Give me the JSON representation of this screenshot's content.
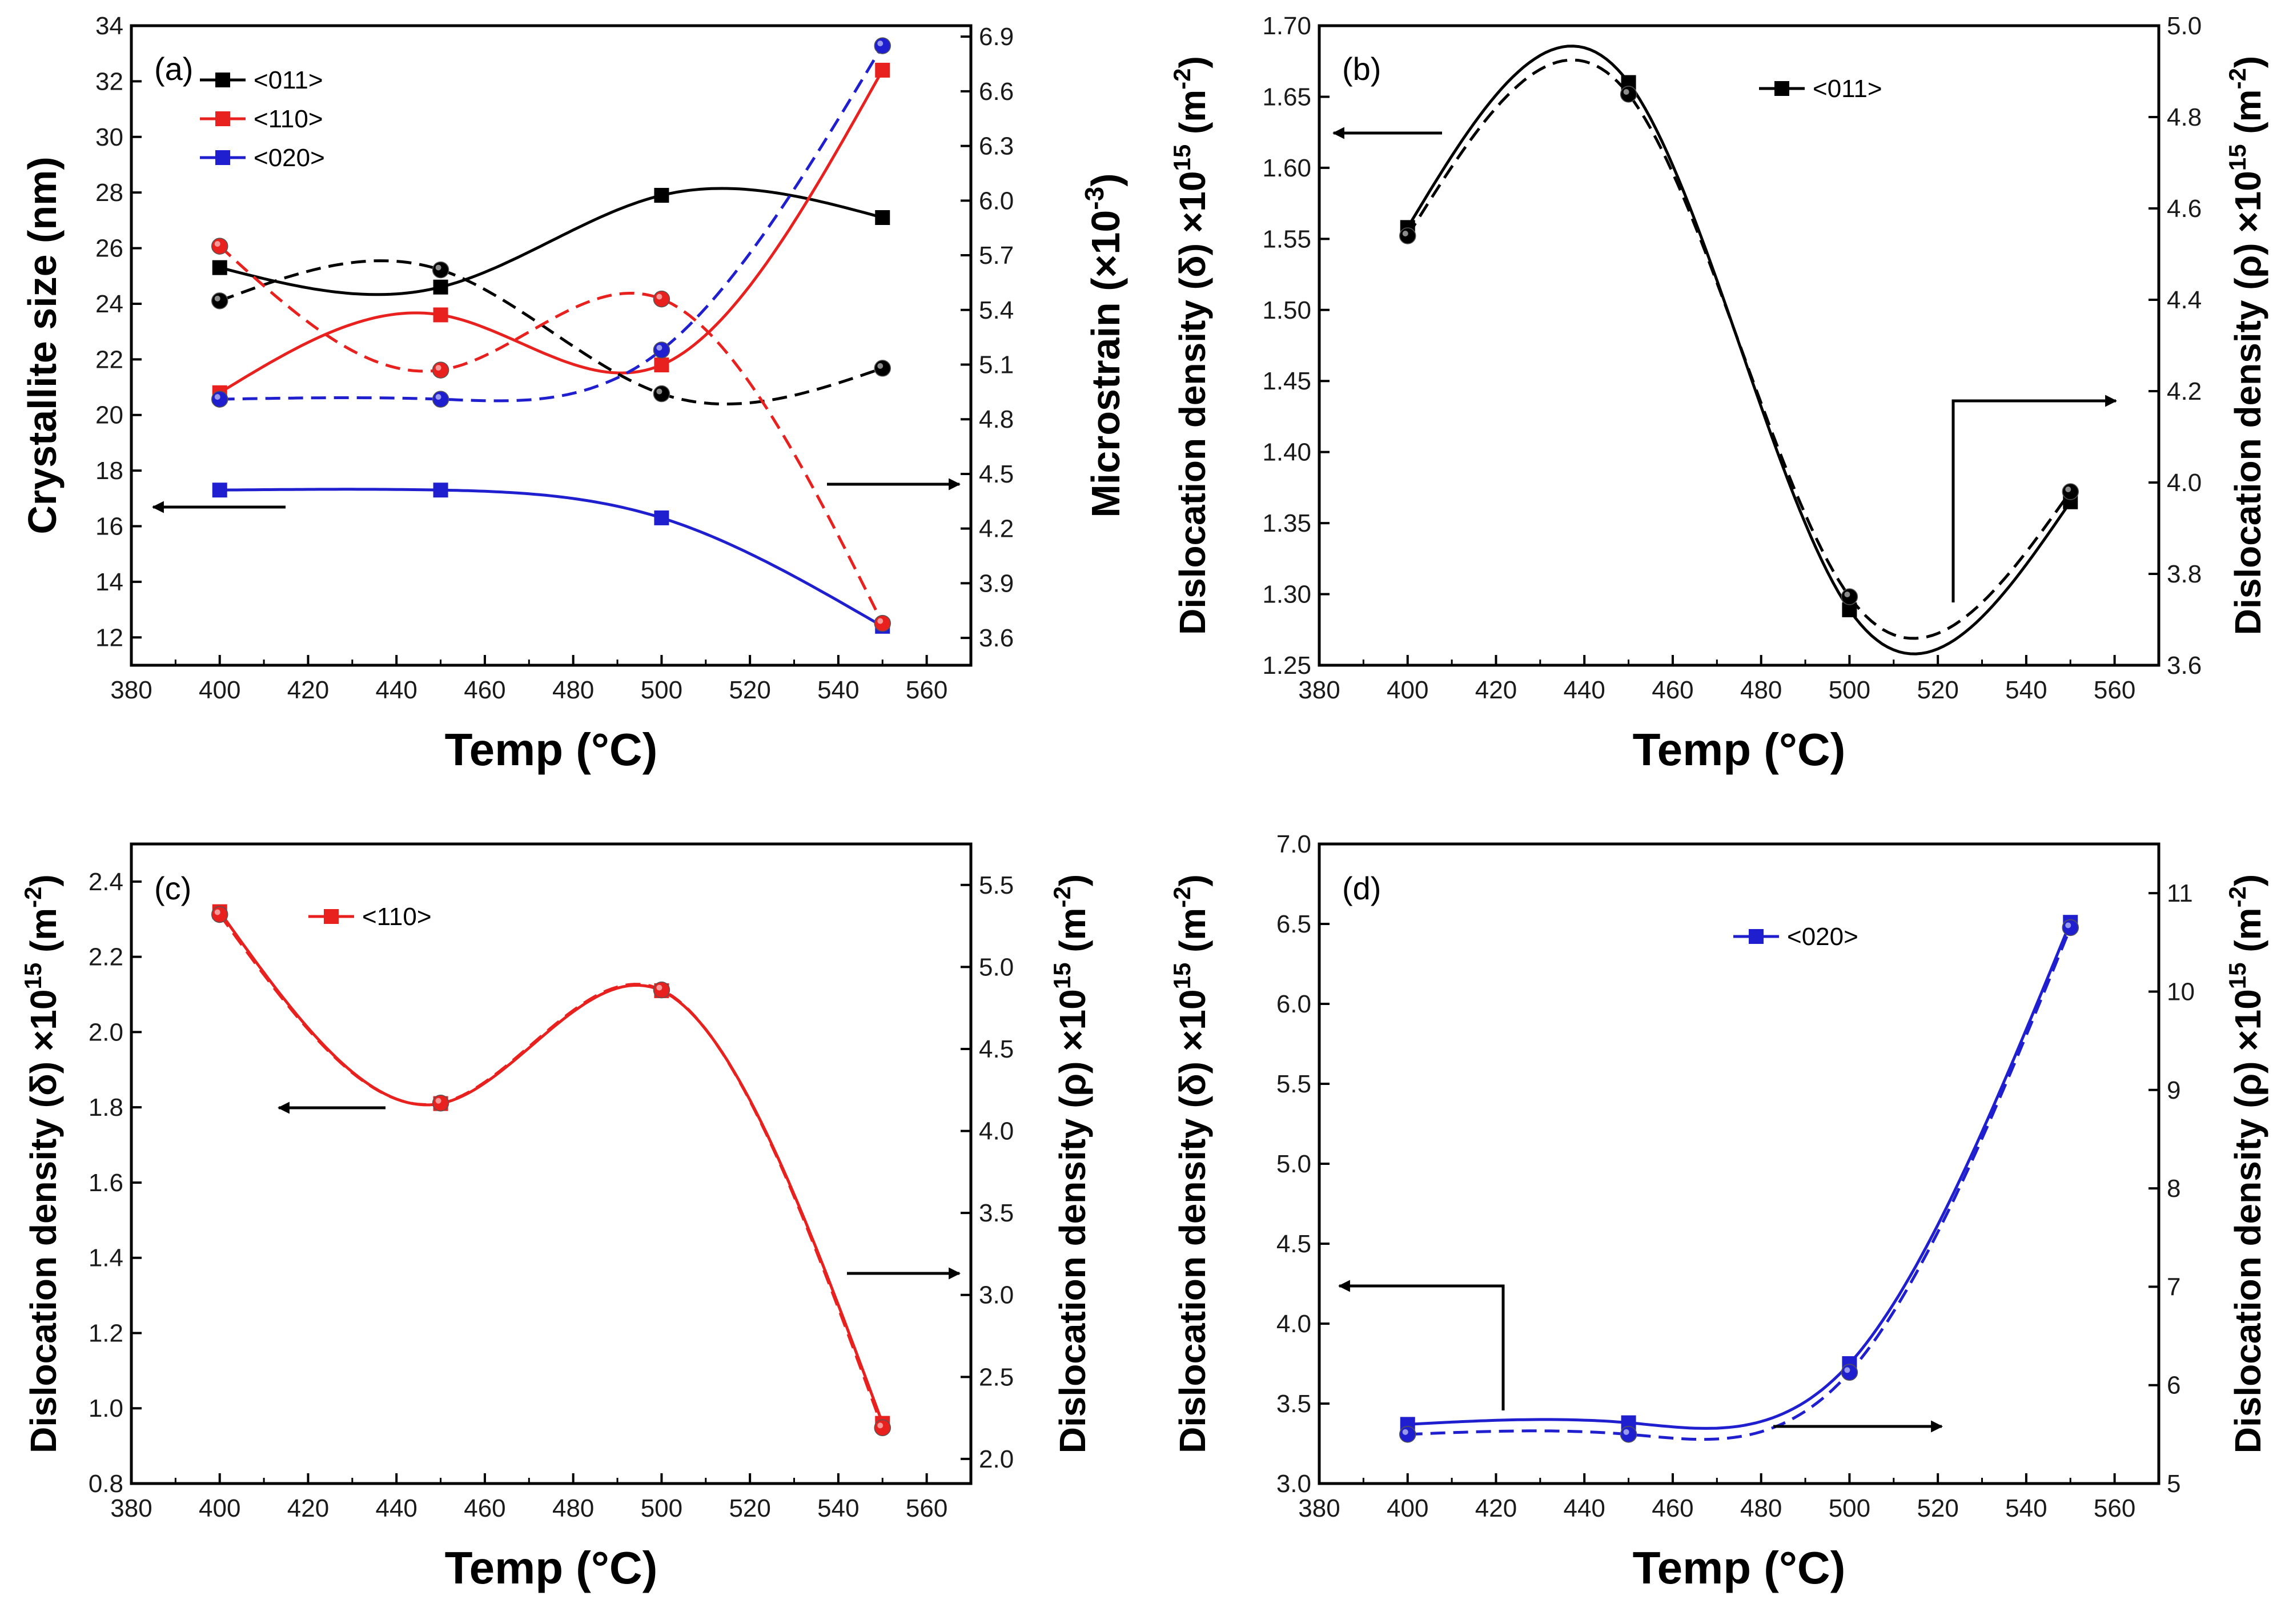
{
  "chart_data": [
    {
      "type": "line",
      "panel": "(a)",
      "xlabel": "Temp (°C)",
      "ylabel": "Crystallite size (nm)",
      "ylabel_right": "Microstrain (×10",
      "ylabel_right_exp": "-3",
      "ylabel_right_close": ")",
      "xlim": [
        380,
        570
      ],
      "ylim": [
        11,
        34
      ],
      "ylim_right": [
        3.45,
        6.96
      ],
      "xticks": [
        380,
        400,
        420,
        440,
        460,
        480,
        500,
        520,
        540,
        560
      ],
      "yticks": [
        12,
        14,
        16,
        18,
        20,
        22,
        24,
        26,
        28,
        30,
        32,
        34
      ],
      "yticks_right": [
        "3.6",
        "3.9",
        "4.2",
        "4.5",
        "4.8",
        "5.1",
        "5.4",
        "5.7",
        "6.0",
        "6.3",
        "6.6",
        "6.9"
      ],
      "x": [
        400,
        450,
        500,
        550
      ],
      "legend": [
        {
          "label": "<011>",
          "color": "#000000"
        },
        {
          "label": "<110>",
          "color": "#e8211f"
        },
        {
          "label": "<020>",
          "color": "#1f1fd0"
        }
      ],
      "series": [
        {
          "name": "<011>",
          "axis": "left",
          "marker": "square",
          "dashed": false,
          "color": "#000000",
          "values": [
            25.3,
            24.6,
            27.9,
            27.1
          ]
        },
        {
          "name": "<110>",
          "axis": "left",
          "marker": "square",
          "dashed": false,
          "color": "#e8211f",
          "values": [
            20.8,
            23.6,
            21.8,
            32.4
          ]
        },
        {
          "name": "<020>",
          "axis": "left",
          "marker": "square",
          "dashed": false,
          "color": "#1f1fd0",
          "values": [
            17.3,
            17.3,
            16.3,
            12.4
          ]
        },
        {
          "name": "<011>",
          "axis": "right",
          "marker": "circle",
          "dashed": true,
          "color": "#000000",
          "values": [
            5.45,
            5.62,
            4.94,
            5.08
          ]
        },
        {
          "name": "<110>",
          "axis": "right",
          "marker": "circle",
          "dashed": true,
          "color": "#e8211f",
          "values": [
            5.75,
            5.07,
            5.46,
            3.68
          ]
        },
        {
          "name": "<020>",
          "axis": "right",
          "marker": "circle",
          "dashed": true,
          "color": "#1f1fd0",
          "values": [
            4.91,
            4.91,
            5.18,
            6.85
          ]
        }
      ]
    },
    {
      "type": "line",
      "panel": "(b)",
      "xlabel": "Temp (°C)",
      "ylabel": "Dislocation density (δ) ×10",
      "ylabel_exp": "15",
      "ylabel_unit": " (m",
      "ylabel_unit_exp": "-2",
      "ylabel_close": ")",
      "ylabel_right": "Dislocation density (ρ) ×10",
      "ylabel_right_exp": "15",
      "ylabel_right_unit": " (m",
      "ylabel_right_unit_exp": "-2",
      "ylabel_right_close": ")",
      "xlim": [
        380,
        570
      ],
      "ylim": [
        1.25,
        1.7
      ],
      "ylim_right": [
        3.6,
        5.0
      ],
      "xticks": [
        380,
        400,
        420,
        440,
        460,
        480,
        500,
        520,
        540,
        560
      ],
      "yticks": [
        "1.25",
        "1.30",
        "1.35",
        "1.40",
        "1.45",
        "1.50",
        "1.55",
        "1.60",
        "1.65",
        "1.70"
      ],
      "yticks_right": [
        "3.6",
        "3.8",
        "4.0",
        "4.2",
        "4.4",
        "4.6",
        "4.8",
        "5.0"
      ],
      "x": [
        400,
        450,
        500,
        550
      ],
      "legend": [
        {
          "label": "<011>",
          "color": "#000000"
        }
      ],
      "series": [
        {
          "name": "δ",
          "axis": "left",
          "marker": "square",
          "dashed": false,
          "color": "#000000",
          "values": [
            1.558,
            1.66,
            1.289,
            1.365
          ]
        },
        {
          "name": "ρ",
          "axis": "right",
          "marker": "circle",
          "dashed": true,
          "color": "#000000",
          "values": [
            4.54,
            4.85,
            3.75,
            3.98
          ]
        }
      ]
    },
    {
      "type": "line",
      "panel": "(c)",
      "xlabel": "Temp (°C)",
      "ylabel": "Dislocation density (δ) ×10",
      "ylabel_exp": "15",
      "ylabel_unit": " (m",
      "ylabel_unit_exp": "-2",
      "ylabel_close": ")",
      "ylabel_right": "Dislocation density (ρ) ×10",
      "ylabel_right_exp": "15",
      "ylabel_right_unit": " (m",
      "ylabel_right_unit_exp": "-2",
      "ylabel_right_close": ")",
      "xlim": [
        380,
        570
      ],
      "ylim": [
        0.8,
        2.5
      ],
      "ylim_right": [
        1.85,
        5.75
      ],
      "xticks": [
        380,
        400,
        420,
        440,
        460,
        480,
        500,
        520,
        540,
        560
      ],
      "yticks": [
        "0.8",
        "1.0",
        "1.2",
        "1.4",
        "1.6",
        "1.8",
        "2.0",
        "2.2",
        "2.4"
      ],
      "yticks_right": [
        "2.0",
        "2.5",
        "3.0",
        "3.5",
        "4.0",
        "4.5",
        "5.0",
        "5.5"
      ],
      "x": [
        400,
        450,
        500,
        550
      ],
      "legend": [
        {
          "label": "<110>",
          "color": "#e8211f"
        }
      ],
      "series": [
        {
          "name": "δ",
          "axis": "left",
          "marker": "square",
          "dashed": false,
          "color": "#e8211f",
          "values": [
            2.32,
            1.81,
            2.11,
            0.96
          ]
        },
        {
          "name": "ρ",
          "axis": "right",
          "marker": "circle",
          "dashed": true,
          "color": "#e8211f",
          "values": [
            5.32,
            4.17,
            4.86,
            2.19
          ]
        }
      ]
    },
    {
      "type": "line",
      "panel": "(d)",
      "xlabel": "Temp (°C)",
      "ylabel": "Dislocation density (δ) ×10",
      "ylabel_exp": "15",
      "ylabel_unit": " (m",
      "ylabel_unit_exp": "-2",
      "ylabel_close": ")",
      "ylabel_right": "Dislocation density (ρ) ×10",
      "ylabel_right_exp": "15",
      "ylabel_right_unit": " (m",
      "ylabel_right_unit_exp": "-2",
      "ylabel_right_close": ")",
      "xlim": [
        380,
        570
      ],
      "ylim": [
        3.0,
        7.0
      ],
      "ylim_right": [
        5.0,
        11.5
      ],
      "xticks": [
        380,
        400,
        420,
        440,
        460,
        480,
        500,
        520,
        540,
        560
      ],
      "yticks": [
        "3.0",
        "3.5",
        "4.0",
        "4.5",
        "5.0",
        "5.5",
        "6.0",
        "6.5",
        "7.0"
      ],
      "yticks_right": [
        "5",
        "6",
        "7",
        "8",
        "9",
        "10",
        "11"
      ],
      "x": [
        400,
        450,
        500,
        550
      ],
      "legend": [
        {
          "label": "<020>",
          "color": "#1f1fd0"
        }
      ],
      "series": [
        {
          "name": "δ",
          "axis": "left",
          "marker": "square",
          "dashed": false,
          "color": "#1f1fd0",
          "values": [
            3.37,
            3.38,
            3.75,
            6.51
          ]
        },
        {
          "name": "ρ",
          "axis": "right",
          "marker": "circle",
          "dashed": true,
          "color": "#1f1fd0",
          "values": [
            5.5,
            5.5,
            6.13,
            10.65
          ]
        }
      ]
    }
  ]
}
